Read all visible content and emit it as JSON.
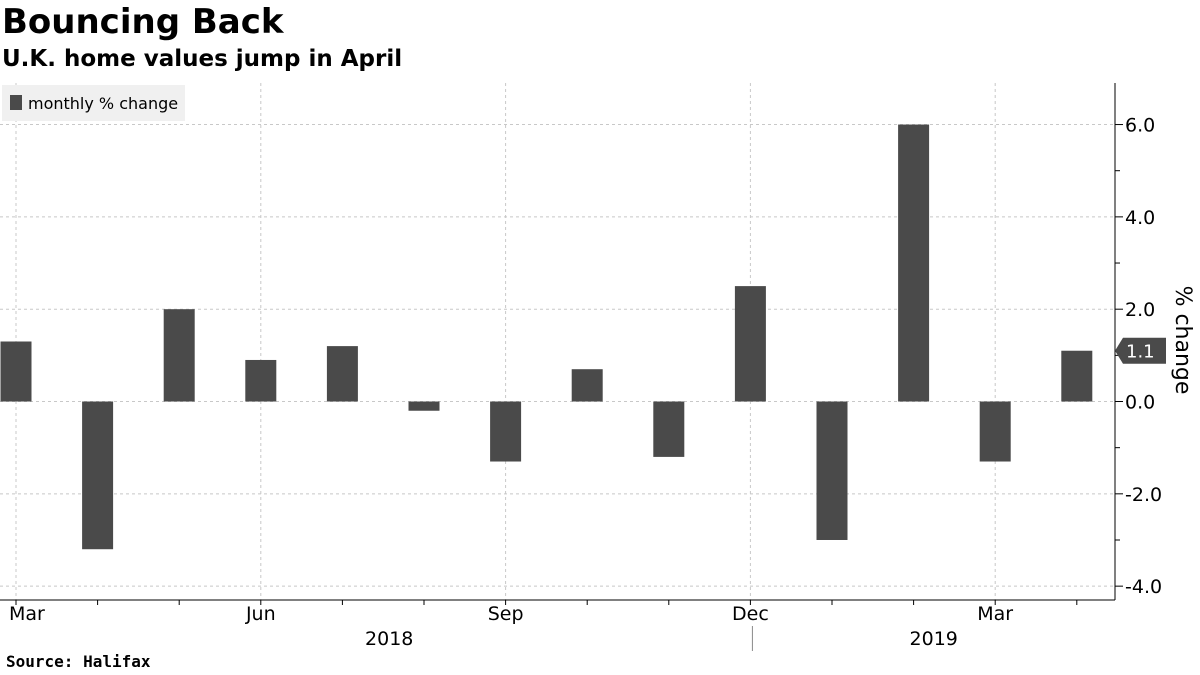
{
  "header": {
    "title": "Bouncing Back",
    "subtitle": "U.K. home values jump in April"
  },
  "footer": {
    "source": "Source:  Halifax"
  },
  "colors": {
    "bar": "#4a4a4a",
    "grid": "#c8c8c8",
    "axis": "#000000",
    "legend_bg": "#f0f0f0"
  },
  "chart_data": {
    "type": "bar",
    "categories": [
      "2018-03",
      "2018-04",
      "2018-05",
      "2018-06",
      "2018-07",
      "2018-08",
      "2018-09",
      "2018-10",
      "2018-11",
      "2018-12",
      "2019-01",
      "2019-02",
      "2019-03",
      "2019-04"
    ],
    "series": [
      {
        "name": "monthly % change",
        "values": [
          1.3,
          -3.2,
          2.0,
          0.9,
          1.2,
          -0.2,
          -1.3,
          0.7,
          -1.2,
          2.5,
          -3.0,
          6.0,
          -1.3,
          1.1
        ]
      }
    ],
    "x_tick_labels": [
      "Mar",
      "Jun",
      "Sep",
      "Dec",
      "Mar"
    ],
    "x_tick_categories": [
      "2018-03",
      "2018-06",
      "2018-09",
      "2018-12",
      "2019-03"
    ],
    "year_labels": [
      "2018",
      "2019"
    ],
    "ylabel": "% change",
    "ylim": [
      -4.3,
      6.9
    ],
    "y_ticks": [
      -4.0,
      -2.0,
      0.0,
      2.0,
      4.0,
      6.0
    ],
    "y_tick_labels": [
      "-4.0",
      "-2.0",
      "0.0",
      "2.0",
      "4.0",
      "6.0"
    ],
    "y_axis_side": "right",
    "grid": true,
    "legend_position": "top-left",
    "last_value_label": "1.1"
  }
}
